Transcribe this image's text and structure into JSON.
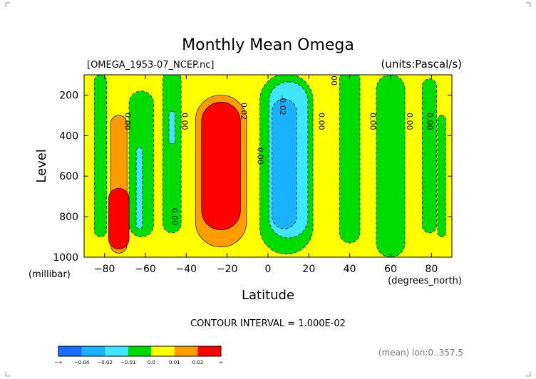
{
  "header": {
    "title": "Monthly Mean Omega",
    "file_label": "[OMEGA_1953-07_NCEP.nc]",
    "units_label": "(units:Pascal/s)"
  },
  "footer": {
    "contour_interval": "CONTOUR INTERVAL = 1.000E-02",
    "mean_label": "(mean) lon:0..357.5"
  },
  "chart_data": {
    "type": "heatmap",
    "title": "Monthly Mean Omega",
    "xlabel": "Latitude",
    "xunit_label": "(degrees_north)",
    "ylabel": "Level",
    "yunit_label": "(millibar)",
    "xlim": [
      -90,
      90
    ],
    "ylim": [
      1000,
      100
    ],
    "x_ticks": [
      -80,
      -60,
      -40,
      -20,
      0,
      20,
      40,
      60,
      80
    ],
    "x_tick_labels": [
      "−80",
      "−60",
      "−40",
      "−20",
      "0",
      "20",
      "40",
      "60",
      "80"
    ],
    "y_ticks": [
      200,
      400,
      600,
      800,
      1000
    ],
    "y_tick_labels": [
      "200",
      "400",
      "600",
      "800",
      "1000"
    ],
    "contour_labels": [
      {
        "text": "0.00",
        "lat": -70,
        "level": 330
      },
      {
        "text": "0.00",
        "lat": -42,
        "level": 330
      },
      {
        "text": "0.02",
        "lat": -13,
        "level": 280
      },
      {
        "text": "0.00",
        "lat": -5,
        "level": 500
      },
      {
        "text": "-0.02",
        "lat": 6,
        "level": 250
      },
      {
        "text": "0.00",
        "lat": 25,
        "level": 330
      },
      {
        "text": "0.00",
        "lat": 31,
        "level": 110
      },
      {
        "text": "0.00",
        "lat": 50,
        "level": 330
      },
      {
        "text": "0.00",
        "lat": 68,
        "level": 330
      },
      {
        "text": "0.00",
        "lat": 78,
        "level": 330
      },
      {
        "text": "0.00",
        "lat": -47,
        "level": 800
      }
    ],
    "fields": [
      {
        "value": 0.005,
        "lat": 0,
        "level": 550,
        "wlat": 180,
        "wlev": 900
      },
      {
        "value": -0.005,
        "lat": -82,
        "level": 500,
        "wlat": 6,
        "wlev": 800
      },
      {
        "value": -0.005,
        "lat": -62,
        "level": 540,
        "wlat": 12,
        "wlev": 720
      },
      {
        "value": -0.005,
        "lat": -47,
        "level": 480,
        "wlat": 9,
        "wlev": 800
      },
      {
        "value": -0.015,
        "lat": -47,
        "level": 360,
        "wlat": 3,
        "wlev": 160
      },
      {
        "value": -0.015,
        "lat": -63,
        "level": 660,
        "wlat": 3,
        "wlev": 400
      },
      {
        "value": -0.005,
        "lat": 9,
        "level": 540,
        "wlat": 26,
        "wlev": 890
      },
      {
        "value": -0.015,
        "lat": 10,
        "level": 520,
        "wlat": 19,
        "wlev": 770
      },
      {
        "value": -0.025,
        "lat": 8,
        "level": 540,
        "wlat": 12,
        "wlev": 640
      },
      {
        "value": -0.005,
        "lat": 40,
        "level": 500,
        "wlat": 10,
        "wlev": 860
      },
      {
        "value": -0.005,
        "lat": 60,
        "level": 550,
        "wlat": 14,
        "wlev": 900
      },
      {
        "value": -0.005,
        "lat": 79,
        "level": 500,
        "wlat": 7,
        "wlev": 760
      },
      {
        "value": -0.005,
        "lat": 85,
        "level": 600,
        "wlat": 4,
        "wlev": 600
      },
      {
        "value": 0.015,
        "lat": -73,
        "level": 640,
        "wlat": 8,
        "wlev": 680
      },
      {
        "value": 0.025,
        "lat": -73,
        "level": 810,
        "wlat": 10,
        "wlev": 300
      },
      {
        "value": 0.015,
        "lat": -23,
        "level": 575,
        "wlat": 25,
        "wlev": 750
      },
      {
        "value": 0.025,
        "lat": -23,
        "level": 550,
        "wlat": 19,
        "wlev": 630
      }
    ]
  },
  "colorbar": {
    "colors": [
      "#1a6cff",
      "#1ab2ff",
      "#3fe6ff",
      "#00dc00",
      "#ffff00",
      "#ff9d00",
      "#ff0000"
    ],
    "labels": [
      "−∞",
      "−0.04",
      "−0.02",
      "−0.01",
      "0.0",
      "0.01",
      "0.02",
      "∞"
    ]
  },
  "colors": {
    "dark_blue": "#1a6cff",
    "blue": "#1ab2ff",
    "cyan": "#3fe6ff",
    "green": "#00dc00",
    "yellow": "#ffff00",
    "orange": "#ff9d00",
    "red": "#ff0000"
  }
}
